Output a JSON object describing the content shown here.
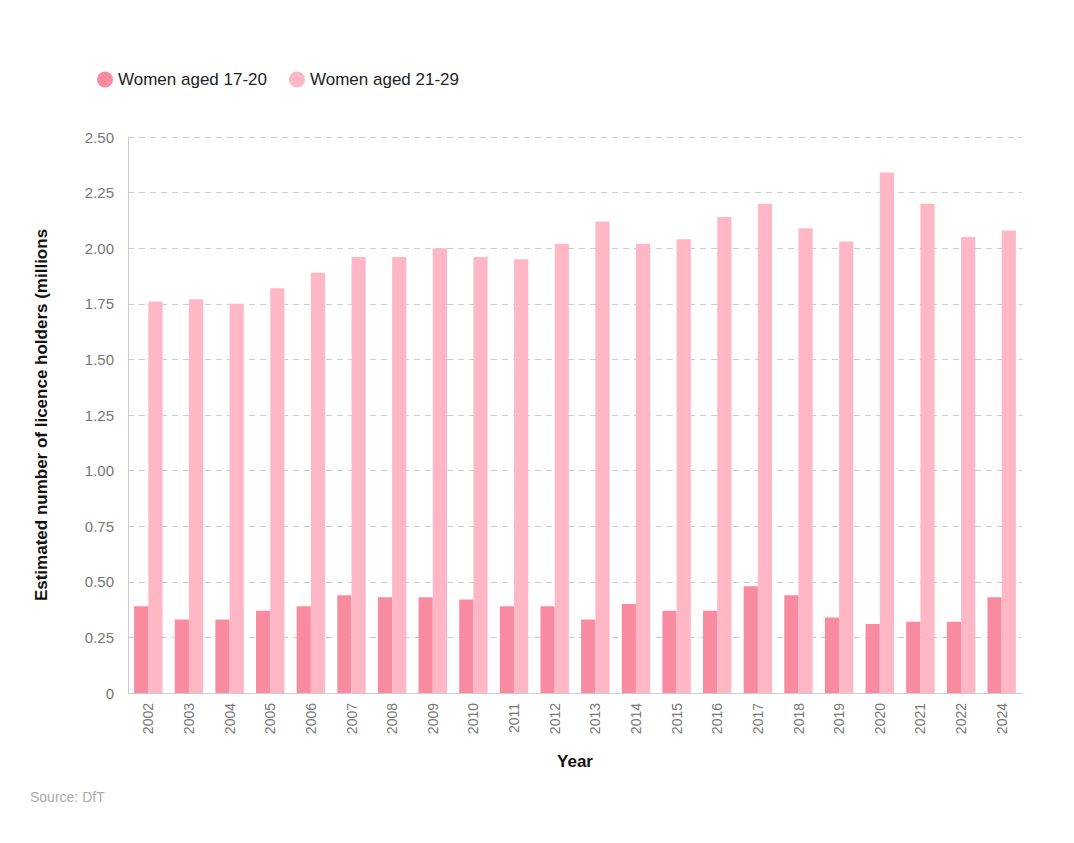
{
  "chart_data": {
    "type": "bar",
    "x_label": "Year",
    "y_label": "Estimated number of licence holders (millions",
    "source": "Source: DfT",
    "categories": [
      "2002",
      "2003",
      "2004",
      "2005",
      "2006",
      "2007",
      "2008",
      "2009",
      "2010",
      "2011",
      "2012",
      "2013",
      "2014",
      "2015",
      "2016",
      "2017",
      "2018",
      "2019",
      "2020",
      "2021",
      "2022",
      "2024"
    ],
    "series": [
      {
        "name": "Women aged 17-20",
        "color": "#f98ba1",
        "values": [
          0.39,
          0.33,
          0.33,
          0.37,
          0.39,
          0.44,
          0.43,
          0.43,
          0.42,
          0.39,
          0.39,
          0.33,
          0.4,
          0.37,
          0.37,
          0.48,
          0.44,
          0.34,
          0.31,
          0.32,
          0.32,
          0.43
        ]
      },
      {
        "name": "Women aged 21-29",
        "color": "#ffb7c5",
        "values": [
          1.76,
          1.77,
          1.75,
          1.82,
          1.89,
          1.96,
          1.96,
          2.0,
          1.96,
          1.95,
          2.02,
          2.12,
          2.02,
          2.04,
          2.14,
          2.2,
          2.09,
          2.03,
          2.34,
          2.2,
          2.05,
          2.08
        ]
      }
    ],
    "ylim": [
      0,
      2.5
    ],
    "yticks": [
      0,
      0.25,
      {
        "value": 0.5,
        "label": "0.50"
      },
      0.75,
      {
        "value": 1,
        "label": "1.00"
      },
      1.25,
      {
        "value": 1.5,
        "label": "1.50"
      },
      1.75,
      {
        "value": 2,
        "label": "2.00"
      },
      2.25,
      {
        "value": 2.5,
        "label": "2.50"
      }
    ],
    "grid": true,
    "legend": "top-left"
  }
}
